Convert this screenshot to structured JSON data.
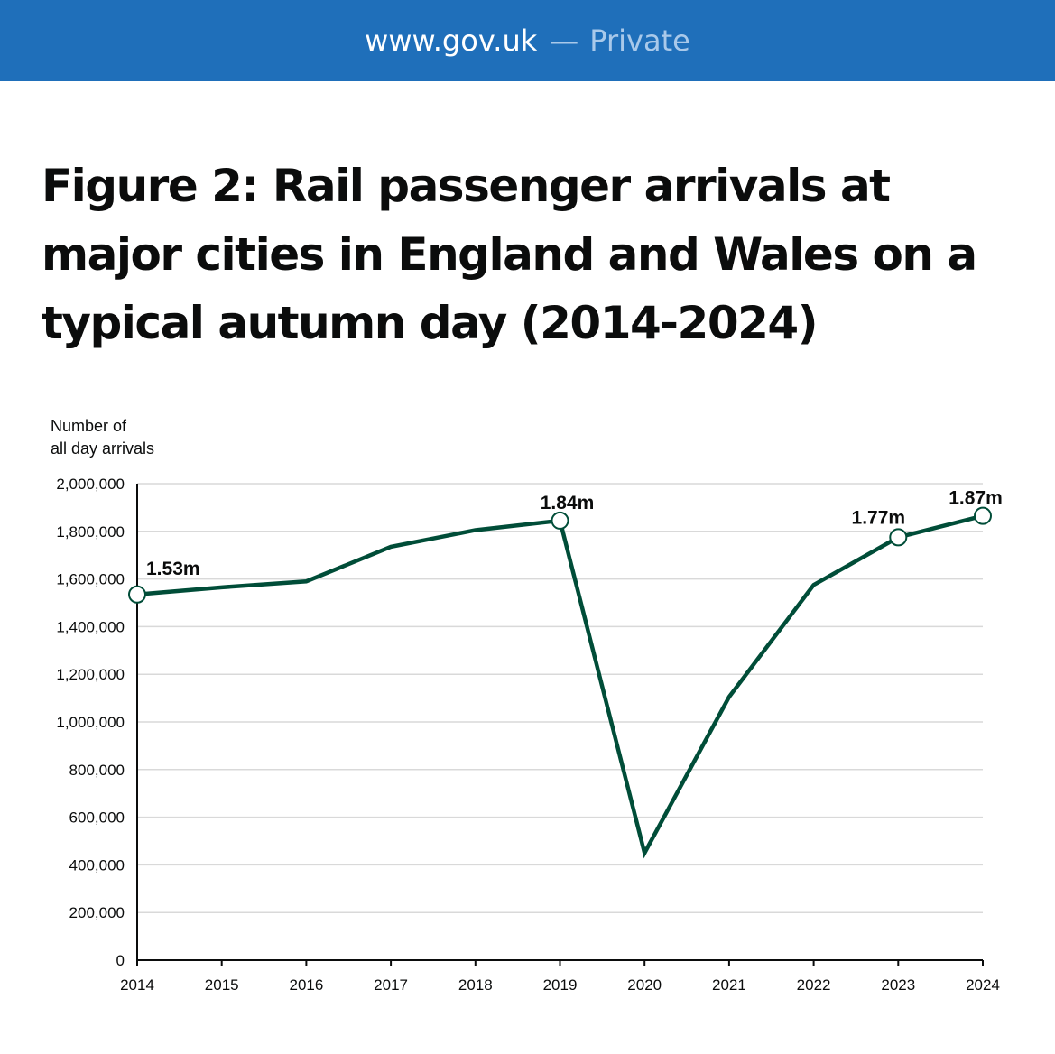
{
  "browser": {
    "url": "www.gov.uk",
    "separator": "—",
    "mode": "Private"
  },
  "page": {
    "title": "Figure 2: Rail passenger arrivals at major cities in England and Wales on a typical autumn day (2014-2024)"
  },
  "colors": {
    "topbar": "#1f6fba",
    "line": "#004d38",
    "grid": "#d9d9d9"
  },
  "chart_data": {
    "type": "line",
    "ylabel_lines": [
      "Number of",
      "all day arrivals"
    ],
    "xlabel": "",
    "x": [
      2014,
      2015,
      2016,
      2017,
      2018,
      2019,
      2020,
      2021,
      2022,
      2023,
      2024
    ],
    "xtick_labels": [
      "2014",
      "2015",
      "2016",
      "2017",
      "2018",
      "2019",
      "2020",
      "2021",
      "2022",
      "2023",
      "2024"
    ],
    "ylim": [
      0,
      2000000
    ],
    "yticks": [
      0,
      200000,
      400000,
      600000,
      800000,
      1000000,
      1200000,
      1400000,
      1600000,
      1800000,
      2000000
    ],
    "ytick_labels": [
      "0",
      "200,000",
      "400,000",
      "600,000",
      "800,000",
      "1,000,000",
      "1,200,000",
      "1,400,000",
      "1,600,000",
      "1,800,000",
      "2,000,000"
    ],
    "grid": "horizontal",
    "series": [
      {
        "values": [
          1535000,
          1565000,
          1590000,
          1735000,
          1805000,
          1845000,
          450000,
          1105000,
          1575000,
          1775000,
          1865000
        ]
      }
    ],
    "annotations": [
      {
        "index": 0,
        "label": "1.53m"
      },
      {
        "index": 5,
        "label": "1.84m"
      },
      {
        "index": 9,
        "label": "1.77m"
      },
      {
        "index": 10,
        "label": "1.87m"
      }
    ]
  }
}
